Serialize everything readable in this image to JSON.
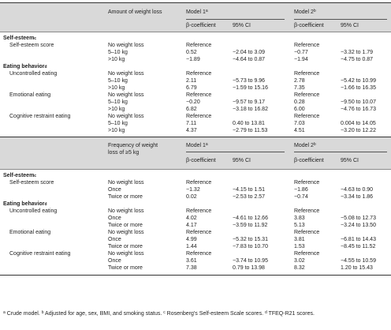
{
  "table1": {
    "header": {
      "col_amount": "Amount of weight loss",
      "model1": "Model 1",
      "model1_sup": "a",
      "model2": "Model 2",
      "model2_sup": "b",
      "beta1": "β-coefficient",
      "ci1": "95% CI",
      "beta2": "β-coefficient",
      "ci2": "95% CI"
    },
    "groups": [
      {
        "title": "Self-esteem",
        "sup": "c",
        "subgroups": [
          {
            "title": "Self-esteem score",
            "rows": [
              {
                "level": "No weight loss",
                "beta1": "Reference",
                "ci1": "",
                "beta2": "Reference",
                "ci2": ""
              },
              {
                "level": "5–10 kg",
                "beta1": "0.52",
                "ci1": "−2.04 to 3.09",
                "beta2": "−0.77",
                "ci2": "−3.32 to 1.79"
              },
              {
                "level": ">10 kg",
                "beta1": "−1.89",
                "ci1": "−4.64 to 0.87",
                "beta2": "−1.94",
                "ci2": "−4.75 to 0.87"
              }
            ]
          }
        ]
      },
      {
        "title": "Eating behavior",
        "sup": "d",
        "subgroups": [
          {
            "title": "Uncontrolled eating",
            "rows": [
              {
                "level": "No weight loss",
                "beta1": "Reference",
                "ci1": "",
                "beta2": "Reference",
                "ci2": ""
              },
              {
                "level": "5–10 kg",
                "beta1": "2.11",
                "ci1": "−5.73 to 9.96",
                "beta2": "2.78",
                "ci2": "−5.42 to 10.99"
              },
              {
                "level": ">10 kg",
                "beta1": "6.79",
                "ci1": "−1.59 to 15.16",
                "beta2": "7.35",
                "ci2": "−1.66 to 16.35"
              }
            ]
          },
          {
            "title": "Emotional eating",
            "rows": [
              {
                "level": "No weight loss",
                "beta1": "Reference",
                "ci1": "",
                "beta2": "Reference",
                "ci2": ""
              },
              {
                "level": "5–10 kg",
                "beta1": "−0.20",
                "ci1": "−9.57 to 9.17",
                "beta2": "0.28",
                "ci2": "−9.50 to 10.07"
              },
              {
                "level": ">10 kg",
                "beta1": "6.82",
                "ci1": "−3.18 to 16.82",
                "beta2": "6.00",
                "ci2": "−4.76 to 16.73"
              }
            ]
          },
          {
            "title": "Cognitive restraint eating",
            "rows": [
              {
                "level": "No weight loss",
                "beta1": "Reference",
                "ci1": "",
                "beta2": "Reference",
                "ci2": ""
              },
              {
                "level": "5–10 kg",
                "beta1": "7.11",
                "ci1": "0.40 to 13.81",
                "beta2": "7.03",
                "ci2": "0.004 to 14.05"
              },
              {
                "level": ">10 kg",
                "beta1": "4.37",
                "ci1": "−2.79 to 11.53",
                "beta2": "4.51",
                "ci2": "−3.20 to 12.22"
              }
            ]
          }
        ]
      }
    ]
  },
  "table2": {
    "header": {
      "col_freq_line1": "Frequency of weight",
      "col_freq_line2": "loss of ≥5 kg",
      "model1": "Model 1",
      "model1_sup": "a",
      "model2": "Model 2",
      "model2_sup": "b",
      "beta1": "β-coefficient",
      "ci1": "95% CI",
      "beta2": "β-coefficient",
      "ci2": "95% CI"
    },
    "groups": [
      {
        "title": "Self-esteem",
        "sup": "c",
        "subgroups": [
          {
            "title": "Self-esteem score",
            "rows": [
              {
                "level": "No weight loss",
                "beta1": "Reference",
                "ci1": "",
                "beta2": "Reference",
                "ci2": ""
              },
              {
                "level": "Once",
                "beta1": "−1.32",
                "ci1": "−4.15 to 1.51",
                "beta2": "−1.86",
                "ci2": "−4.63 to 0.90"
              },
              {
                "level": "Twice or more",
                "beta1": "0.02",
                "ci1": "−2.53 to 2.57",
                "beta2": "−0.74",
                "ci2": "−3.34 to 1.86"
              }
            ]
          }
        ]
      },
      {
        "title": "Eating behavior",
        "sup": "d",
        "subgroups": [
          {
            "title": "Uncontrolled eating",
            "rows": [
              {
                "level": "No weight loss",
                "beta1": "Reference",
                "ci1": "",
                "beta2": "Reference",
                "ci2": ""
              },
              {
                "level": "Once",
                "beta1": "4.02",
                "ci1": "−4.61 to 12.66",
                "beta2": "3.83",
                "ci2": "−5.08 to 12.73"
              },
              {
                "level": "Twice or more",
                "beta1": "4.17",
                "ci1": "−3.59 to 11.92",
                "beta2": "5.13",
                "ci2": "−3.24 to 13.50"
              }
            ]
          },
          {
            "title": "Emotional eating",
            "rows": [
              {
                "level": "No weight loss",
                "beta1": "Reference",
                "ci1": "",
                "beta2": "Reference",
                "ci2": ""
              },
              {
                "level": "Once",
                "beta1": "4.99",
                "ci1": "−5.32 to 15.31",
                "beta2": "3.81",
                "ci2": "−6.81 to 14.43"
              },
              {
                "level": "Twice or more",
                "beta1": "1.44",
                "ci1": "−7.83 to 10.70",
                "beta2": "1.53",
                "ci2": "−8.45 to 11.52"
              }
            ]
          },
          {
            "title": "Cognitive restraint eating",
            "rows": [
              {
                "level": "No weight loss",
                "beta1": "Reference",
                "ci1": "",
                "beta2": "Reference",
                "ci2": ""
              },
              {
                "level": "Once",
                "beta1": "3.61",
                "ci1": "−3.74 to 10.95",
                "beta2": "3.02",
                "ci2": "−4.55 to 10.59"
              },
              {
                "level": "Twice or more",
                "beta1": "7.38",
                "ci1": "0.79 to 13.98",
                "beta2": "8.32",
                "ci2": "1.20 to 15.43"
              }
            ]
          }
        ]
      }
    ]
  },
  "footnote": {
    "a_sup": "a",
    "a_text": " Crude model. ",
    "b_sup": "b",
    "b_text": " Adjusted for age, sex, BMI, and smoking status. ",
    "c_sup": "c",
    "c_text": " Rosenberg's Self-esteem Scale scores. ",
    "d_sup": "d",
    "d_text": " TFEQ-R21 scores."
  }
}
